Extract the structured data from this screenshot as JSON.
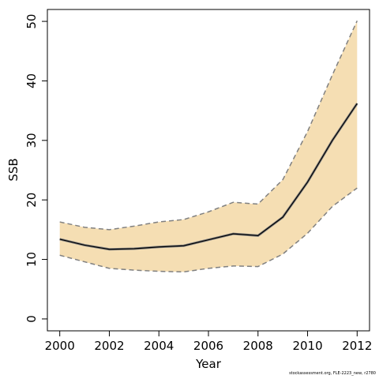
{
  "chart_data": {
    "type": "area",
    "xlabel": "Year",
    "ylabel": "SSB",
    "xlim": [
      1999.5,
      2012.5
    ],
    "ylim": [
      -2,
      52
    ],
    "x_ticks": [
      2000,
      2002,
      2004,
      2006,
      2008,
      2010,
      2012
    ],
    "y_ticks": [
      0,
      10,
      20,
      30,
      40,
      50
    ],
    "grid": false,
    "x": [
      2000,
      2001,
      2002,
      2003,
      2004,
      2005,
      2006,
      2007,
      2008,
      2009,
      2010,
      2011,
      2012
    ],
    "series": [
      {
        "values": [
          13.4,
          12.4,
          11.7,
          11.8,
          12.1,
          12.3,
          13.3,
          14.3,
          14.0,
          17.1,
          23.0,
          30.0,
          36.2
        ]
      },
      {
        "values": [
          16.3,
          15.4,
          15.0,
          15.6,
          16.3,
          16.7,
          18.0,
          19.6,
          19.3,
          23.4,
          31.5,
          41.0,
          50.1
        ]
      },
      {
        "values": [
          10.7,
          9.6,
          8.5,
          8.2,
          8.0,
          7.9,
          8.5,
          8.9,
          8.8,
          10.9,
          14.4,
          18.9,
          22.0
        ]
      }
    ],
    "colors": {
      "band": "#f5deb3",
      "bounds": "#808080",
      "median": "#000000",
      "median_edge": "#808080"
    }
  },
  "footnote": "stockassessment.org, FLE-2223_new, r2780"
}
